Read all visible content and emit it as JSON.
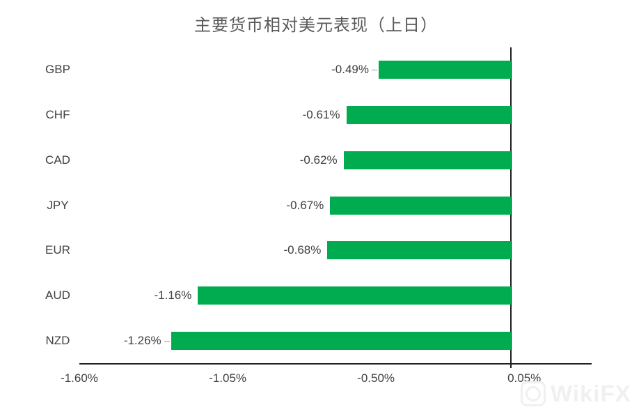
{
  "chart_data": {
    "type": "bar",
    "orientation": "horizontal",
    "title": "主要货币相对美元表现（上日）",
    "categories": [
      "GBP",
      "CHF",
      "CAD",
      "JPY",
      "EUR",
      "AUD",
      "NZD"
    ],
    "values": [
      -0.49,
      -0.61,
      -0.62,
      -0.67,
      -0.68,
      -1.16,
      -1.26
    ],
    "value_labels": [
      "-0.49%",
      "-0.61%",
      "-0.62%",
      "-0.67%",
      "-0.68%",
      "-1.16%",
      "-1.26%"
    ],
    "leader_line_categories": [
      "GBP",
      "NZD"
    ],
    "xlabel": "",
    "ylabel": "",
    "xlim": [
      -1.6,
      0.3
    ],
    "x_ticks": [
      {
        "value": -1.6,
        "label": "-1.60%"
      },
      {
        "value": -1.05,
        "label": "-1.05%"
      },
      {
        "value": -0.5,
        "label": "-0.50%"
      },
      {
        "value": 0.05,
        "label": "0.05%"
      }
    ],
    "grid": "off",
    "legend": "none",
    "bar_color": "#00AC4F",
    "axis_line_color": "#1f1f1f",
    "label_color": "#404040",
    "leader_line_color": "#9b9b9b",
    "title_color": "#595959"
  },
  "watermark": {
    "text": "WikiFX",
    "color": "#f0f0f0"
  }
}
